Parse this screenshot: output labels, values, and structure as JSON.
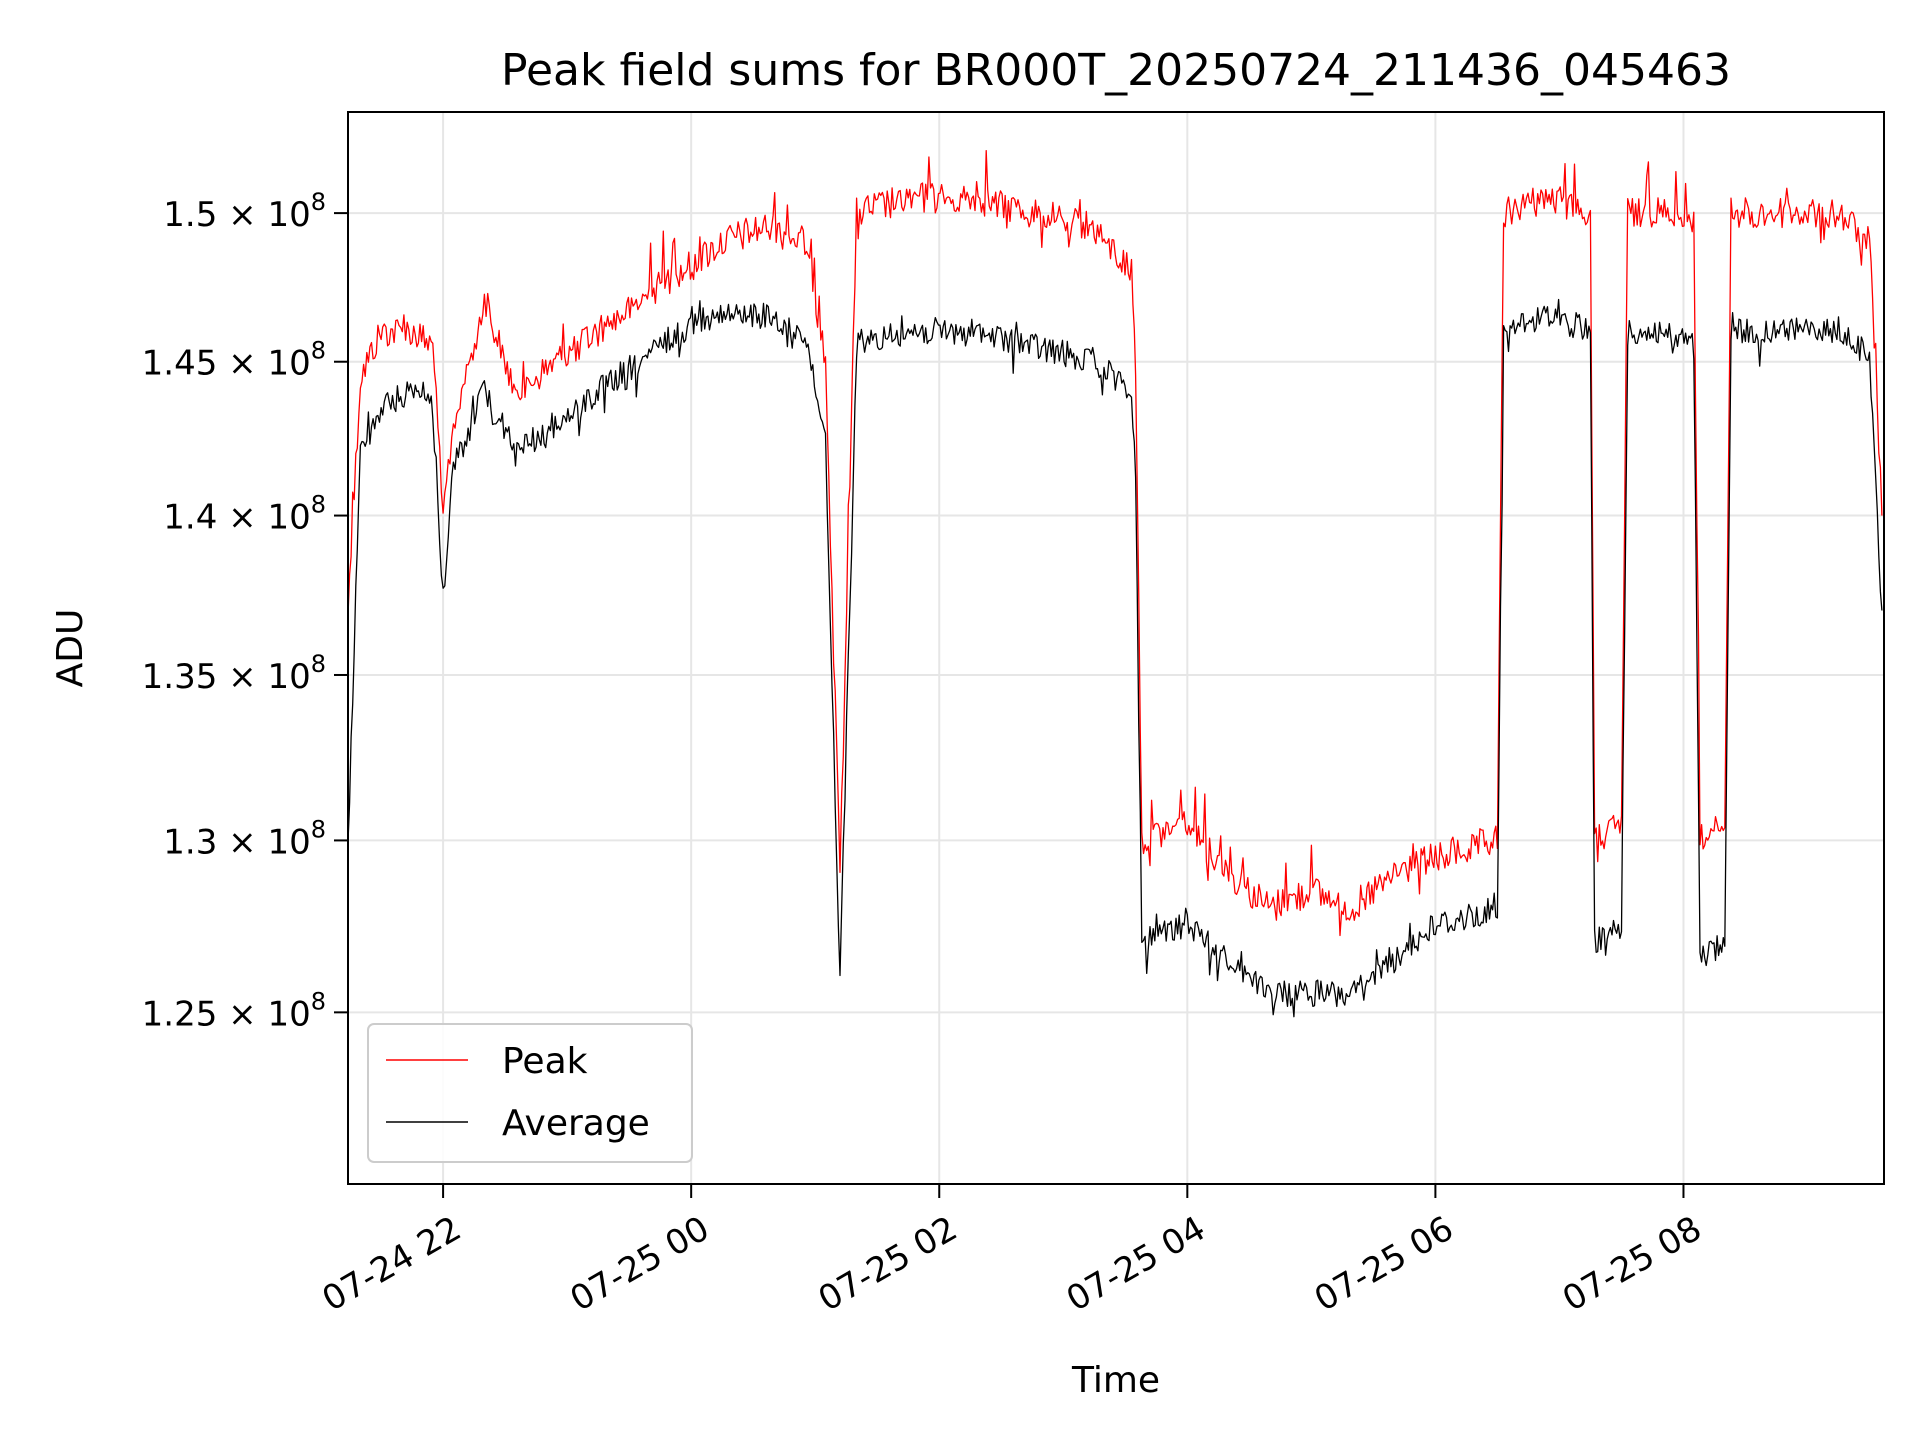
{
  "chart_data": {
    "type": "line",
    "title": "Peak field sums for BR000T_20250724_211436_045463",
    "xlabel": "Time",
    "ylabel": "ADU",
    "x_ticks": [
      "07-24 22",
      "07-25 00",
      "07-25 02",
      "07-25 04",
      "07-25 06",
      "07-25 08"
    ],
    "y_ticks": [
      {
        "value": 125000000,
        "label": "1.25",
        "exp": "8"
      },
      {
        "value": 130000000,
        "label": "1.3",
        "exp": "8"
      },
      {
        "value": 135000000,
        "label": "1.35",
        "exp": "8"
      },
      {
        "value": 140000000,
        "label": "1.4",
        "exp": "8"
      },
      {
        "value": 145000000,
        "label": "1.45",
        "exp": "8"
      },
      {
        "value": 150000000,
        "label": "1.5",
        "exp": "8"
      }
    ],
    "xlim": [
      "2025-07-24 21:14",
      "2025-07-25 09:37"
    ],
    "ylim": [
      120200000,
      153500000
    ],
    "y_scale": "log",
    "grid": true,
    "legend_position": "lower-left",
    "series": [
      {
        "name": "Peak",
        "color": "#ff0000",
        "x": [
          "2025-07-24 21:14",
          "2025-07-24 21:20",
          "2025-07-24 21:30",
          "2025-07-24 21:45",
          "2025-07-24 21:55",
          "2025-07-24 22:00",
          "2025-07-24 22:05",
          "2025-07-24 22:20",
          "2025-07-24 22:35",
          "2025-07-24 22:55",
          "2025-07-24 23:15",
          "2025-07-24 23:35",
          "2025-07-24 23:55",
          "2025-07-25 00:15",
          "2025-07-25 00:35",
          "2025-07-25 00:55",
          "2025-07-25 01:05",
          "2025-07-25 01:12",
          "2025-07-25 01:20",
          "2025-07-25 01:45",
          "2025-07-25 02:15",
          "2025-07-25 02:45",
          "2025-07-25 03:15",
          "2025-07-25 03:33",
          "2025-07-25 03:35",
          "2025-07-25 03:38",
          "2025-07-25 04:00",
          "2025-07-25 04:20",
          "2025-07-25 04:40",
          "2025-07-25 05:00",
          "2025-07-25 05:20",
          "2025-07-25 05:40",
          "2025-07-25 06:00",
          "2025-07-25 06:30",
          "2025-07-25 06:33",
          "2025-07-25 06:55",
          "2025-07-25 07:15",
          "2025-07-25 07:17",
          "2025-07-25 07:30",
          "2025-07-25 07:33",
          "2025-07-25 07:50",
          "2025-07-25 08:05",
          "2025-07-25 08:08",
          "2025-07-25 08:20",
          "2025-07-25 08:23",
          "2025-07-25 08:50",
          "2025-07-25 09:15",
          "2025-07-25 09:30",
          "2025-07-25 09:36"
        ],
        "values": [
          137000000,
          144500000,
          146000000,
          146000000,
          145500000,
          140000000,
          143000000,
          147000000,
          144000000,
          145000000,
          146000000,
          147000000,
          148000000,
          149000000,
          149500000,
          149000000,
          145000000,
          129000000,
          150000000,
          150500000,
          150500000,
          150000000,
          149500000,
          148000000,
          145000000,
          130000000,
          130500000,
          129000000,
          128000000,
          128500000,
          128000000,
          129000000,
          129500000,
          130000000,
          150000000,
          150500000,
          150000000,
          130000000,
          130500000,
          150000000,
          150000000,
          149500000,
          130000000,
          130500000,
          150000000,
          150000000,
          150000000,
          149000000,
          140000000
        ]
      },
      {
        "name": "Average",
        "color": "#000000",
        "x": [
          "2025-07-24 21:14",
          "2025-07-24 21:20",
          "2025-07-24 21:30",
          "2025-07-24 21:45",
          "2025-07-24 21:55",
          "2025-07-24 22:00",
          "2025-07-24 22:05",
          "2025-07-24 22:20",
          "2025-07-24 22:35",
          "2025-07-24 22:55",
          "2025-07-24 23:15",
          "2025-07-24 23:35",
          "2025-07-24 23:55",
          "2025-07-25 00:15",
          "2025-07-25 00:35",
          "2025-07-25 00:55",
          "2025-07-25 01:05",
          "2025-07-25 01:12",
          "2025-07-25 01:20",
          "2025-07-25 01:45",
          "2025-07-25 02:15",
          "2025-07-25 02:45",
          "2025-07-25 03:15",
          "2025-07-25 03:33",
          "2025-07-25 03:35",
          "2025-07-25 03:38",
          "2025-07-25 04:00",
          "2025-07-25 04:20",
          "2025-07-25 04:40",
          "2025-07-25 05:00",
          "2025-07-25 05:20",
          "2025-07-25 05:40",
          "2025-07-25 06:00",
          "2025-07-25 06:30",
          "2025-07-25 06:33",
          "2025-07-25 06:55",
          "2025-07-25 07:15",
          "2025-07-25 07:17",
          "2025-07-25 07:30",
          "2025-07-25 07:33",
          "2025-07-25 07:50",
          "2025-07-25 08:05",
          "2025-07-25 08:08",
          "2025-07-25 08:20",
          "2025-07-25 08:23",
          "2025-07-25 08:50",
          "2025-07-25 09:15",
          "2025-07-25 09:30",
          "2025-07-25 09:36"
        ],
        "values": [
          130000000,
          142000000,
          143500000,
          144000000,
          143500000,
          137500000,
          141500000,
          144000000,
          142000000,
          143000000,
          144000000,
          145000000,
          146000000,
          146500000,
          146500000,
          146000000,
          142500000,
          126000000,
          145500000,
          146000000,
          146000000,
          145500000,
          145000000,
          144000000,
          141000000,
          127000000,
          127500000,
          126500000,
          125500000,
          125500000,
          125500000,
          126500000,
          127500000,
          128000000,
          146000000,
          146500000,
          146000000,
          127000000,
          127500000,
          146000000,
          146000000,
          145500000,
          126500000,
          127000000,
          146000000,
          146000000,
          146000000,
          145000000,
          137000000
        ]
      }
    ]
  }
}
